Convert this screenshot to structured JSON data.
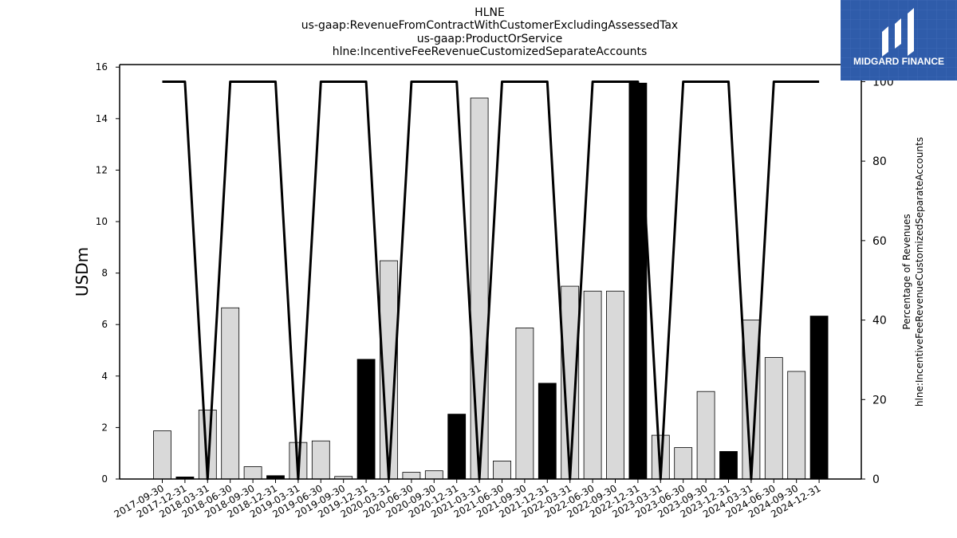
{
  "logo": {
    "text": "MIDGARD FINANCE",
    "bg_color": "#2f5caa",
    "text_color": "#ffffff"
  },
  "chart_data": {
    "type": "bar",
    "title_lines": [
      "HLNE",
      "us-gaap:RevenueFromContractWithCustomerExcludingAssessedTax",
      "us-gaap:ProductOrService",
      "hlne:IncentiveFeeRevenueCustomizedSeparateAccounts"
    ],
    "ylabel": "USDm",
    "y2label": "Percentage of Revenues\nhlne:IncentiveFeeRevenueCustomizedSeparateAccounts",
    "ylim": [
      0,
      16.1
    ],
    "y2lim": [
      0,
      104.3
    ],
    "yticks": [
      0,
      2,
      4,
      6,
      8,
      10,
      12,
      14,
      16
    ],
    "y2ticks": [
      0,
      20,
      40,
      60,
      80,
      100
    ],
    "categories": [
      "2017-09-30",
      "2017-12-31",
      "2018-03-31",
      "2018-06-30",
      "2018-09-30",
      "2018-12-31",
      "2019-03-31",
      "2019-06-30",
      "2019-09-30",
      "2019-12-31",
      "2020-03-31",
      "2020-06-30",
      "2020-09-30",
      "2020-12-31",
      "2021-03-31",
      "2021-06-30",
      "2021-09-30",
      "2021-12-31",
      "2022-03-31",
      "2022-06-30",
      "2022-09-30",
      "2022-12-31",
      "2023-03-31",
      "2023-06-30",
      "2023-09-30",
      "2023-12-31",
      "2024-03-31",
      "2024-06-30",
      "2024-09-30",
      "2024-12-31"
    ],
    "values": [
      1.87,
      0.08,
      2.68,
      6.65,
      0.48,
      0.13,
      1.42,
      1.48,
      0.1,
      4.65,
      8.48,
      0.26,
      0.32,
      2.52,
      14.8,
      0.7,
      5.87,
      3.72,
      7.49,
      7.3,
      7.3,
      15.38,
      1.7,
      1.22,
      3.4,
      1.07,
      6.18,
      4.72,
      4.18,
      6.33
    ],
    "fiscal_year_end": [
      false,
      true,
      false,
      false,
      false,
      true,
      false,
      false,
      false,
      true,
      false,
      false,
      false,
      true,
      false,
      false,
      false,
      true,
      false,
      false,
      false,
      true,
      false,
      false,
      false,
      true,
      false,
      false,
      false,
      true
    ],
    "percentage_line": [
      100,
      100,
      0,
      100,
      100,
      100,
      0,
      100,
      100,
      100,
      0,
      100,
      100,
      100,
      0,
      100,
      100,
      100,
      0,
      100,
      100,
      100,
      0,
      100,
      100,
      100,
      0,
      100,
      100,
      100
    ],
    "colors": {
      "bar_quarter": "#d9d9d9",
      "bar_year": "#000000",
      "line": "#000000"
    },
    "grid": false
  }
}
